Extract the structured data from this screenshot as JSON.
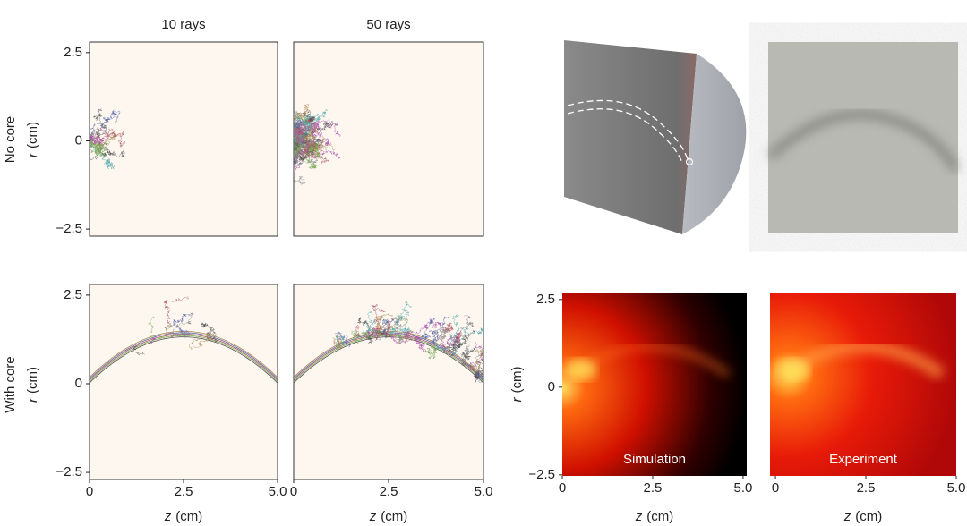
{
  "column_titles": [
    "10 rays",
    "50 rays"
  ],
  "row_labels": [
    {
      "name": "No core",
      "symbol": "r",
      "unit": "(cm)"
    },
    {
      "name": "With core",
      "symbol": "r",
      "unit": "(cm)"
    }
  ],
  "ray_plots": [
    {
      "xlim": [
        0,
        5
      ],
      "ylim": [
        -2.7,
        2.8
      ],
      "yticks": [
        2.5,
        0,
        {
          "value": -2.5,
          "label": "−2.5"
        }
      ]
    },
    {
      "xlim": [
        0,
        5
      ],
      "ylim": [
        -2.7,
        2.8
      ]
    },
    {
      "xlim": [
        0,
        5
      ],
      "ylim": [
        -2.7,
        2.8
      ],
      "yticks": [
        2.5,
        0,
        {
          "value": -2.5,
          "label": "−2.5"
        }
      ],
      "xticks": [
        0,
        2.5,
        {
          "value": 5,
          "label": "5.0"
        }
      ],
      "xlabel": {
        "symbol": "z",
        "unit": "(cm)"
      }
    },
    {
      "xlim": [
        0,
        5
      ],
      "ylim": [
        -2.7,
        2.8
      ],
      "xticks": [
        0,
        2.5,
        {
          "value": 5,
          "label": "5.0"
        }
      ],
      "xlabel": {
        "symbol": "z",
        "unit": "(cm)"
      }
    }
  ],
  "intensity_maps": [
    {
      "label": "Simulation",
      "xlim": [
        0,
        5.1
      ],
      "ylim": [
        -2.53,
        2.7
      ],
      "yticks": [
        2.5,
        0,
        {
          "value": -2.5,
          "label": "−2.5"
        }
      ],
      "ylabel": {
        "symbol": "r",
        "unit": "(cm)"
      },
      "xticks": [
        0,
        2.5,
        {
          "value": 5,
          "label": "5.0"
        }
      ],
      "xlabel": {
        "symbol": "z",
        "unit": "(cm)"
      }
    },
    {
      "label": "Experiment",
      "xlim": [
        -0.15,
        5
      ],
      "ylim": [
        -2.53,
        2.7
      ],
      "xticks": [
        0,
        2.5,
        {
          "value": 5,
          "label": "5.0"
        }
      ],
      "xlabel": {
        "symbol": "z",
        "unit": "(cm)"
      }
    }
  ]
}
